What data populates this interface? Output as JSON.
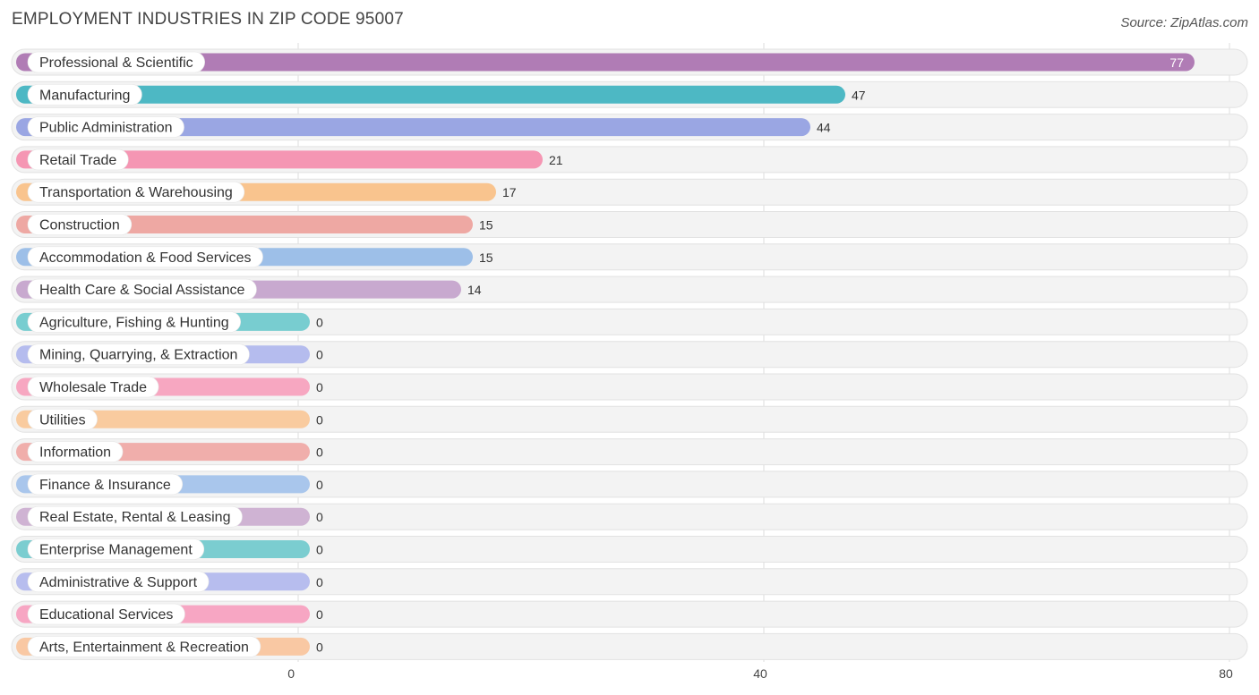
{
  "title": "EMPLOYMENT INDUSTRIES IN ZIP CODE 95007",
  "source": "Source: ZipAtlas.com",
  "chart_data": {
    "type": "bar",
    "orientation": "horizontal",
    "title": "EMPLOYMENT INDUSTRIES IN ZIP CODE 95007",
    "xlim": [
      0,
      80
    ],
    "xticks": [
      0,
      40,
      80
    ],
    "grid": true,
    "categories": [
      "Professional & Scientific",
      "Manufacturing",
      "Public Administration",
      "Retail Trade",
      "Transportation & Warehousing",
      "Construction",
      "Accommodation & Food Services",
      "Health Care & Social Assistance",
      "Agriculture, Fishing & Hunting",
      "Mining, Quarrying, & Extraction",
      "Wholesale Trade",
      "Utilities",
      "Information",
      "Finance & Insurance",
      "Real Estate, Rental & Leasing",
      "Enterprise Management",
      "Administrative & Support",
      "Educational Services",
      "Arts, Entertainment & Recreation"
    ],
    "values": [
      77,
      47,
      44,
      21,
      17,
      15,
      15,
      14,
      0,
      0,
      0,
      0,
      0,
      0,
      0,
      0,
      0,
      0,
      0
    ],
    "colors": [
      "#b07cb5",
      "#4db8c4",
      "#9aa6e3",
      "#f596b3",
      "#f9c48e",
      "#eea8a3",
      "#9dbfe8",
      "#c8a9cf",
      "#78cdd0",
      "#b5bcee",
      "#f7a7c1",
      "#f9cb9f",
      "#f0aeab",
      "#a9c6ec",
      "#cfb3d3",
      "#7bcdd0",
      "#b7bdee",
      "#f7a6c3",
      "#f9c8a3"
    ]
  }
}
